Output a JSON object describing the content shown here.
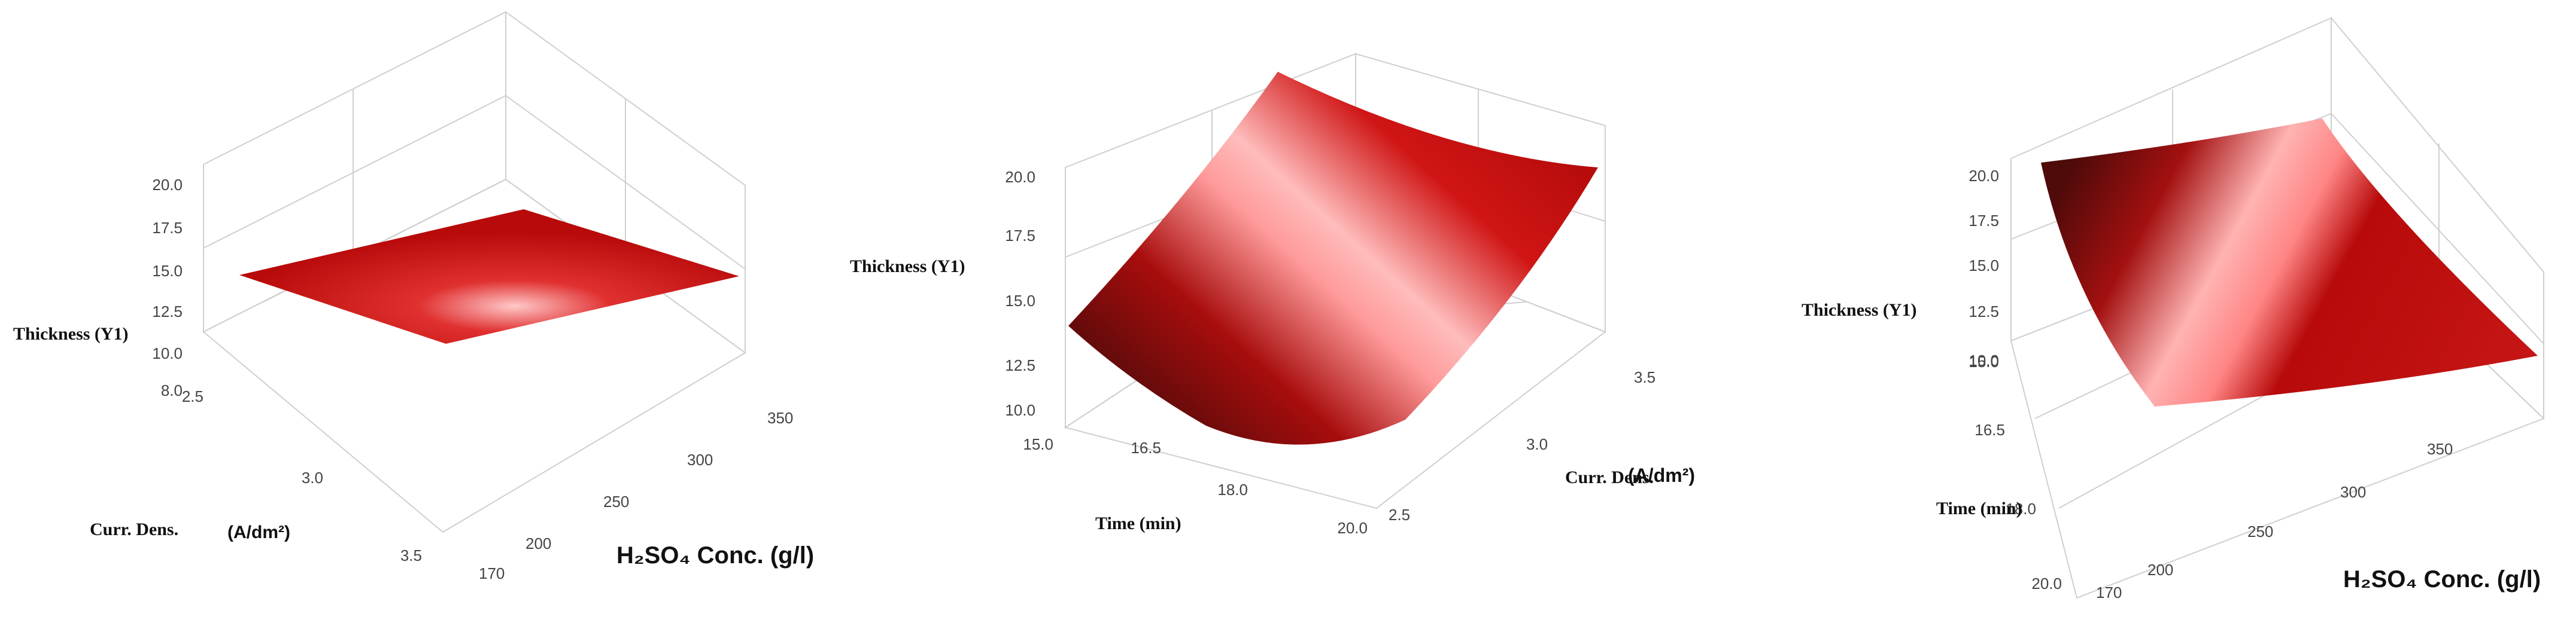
{
  "figure": {
    "panels": [
      {
        "z_label": "Thickness (Y1)",
        "y_label_main": "Curr. Dens.",
        "y_label_unit": "(A/dm²)",
        "x_label_main": "H₂SO₄ Conc. (g/l)"
      },
      {
        "z_label": "Thickness (Y1)",
        "x_label_main": "Time (min)",
        "y_label_main": "Curr. Dens.",
        "y_label_unit": "(A/dm²)"
      },
      {
        "z_label": "Thickness (Y1)",
        "y_label_main": "Time (min)",
        "x_label_main": "H₂SO₄ Conc. (g/l)"
      }
    ]
  },
  "chart_data": [
    {
      "type": "surface",
      "title": "",
      "xlabel": "H₂SO₄ Conc. (g/l)",
      "ylabel": "Curr. Dens. (A/dm²)",
      "zlabel": "Thickness (Y1)",
      "x_ticks": [
        "170",
        "200",
        "250",
        "300",
        "350"
      ],
      "y_ticks": [
        "2.5",
        "3.0",
        "3.5"
      ],
      "z_ticks": [
        "8.0",
        "10.0",
        "12.5",
        "15.0",
        "17.5",
        "20.0"
      ],
      "xlim": [
        170,
        350
      ],
      "ylim": [
        2.5,
        3.5
      ],
      "zlim": [
        8,
        20
      ],
      "x": [
        170,
        350
      ],
      "y": [
        2.5,
        3.5
      ],
      "z": [
        [
          13.5,
          13.8
        ],
        [
          13.8,
          12.8
        ]
      ],
      "colormap": [
        "#5a0d0d",
        "#c41414",
        "#ffc4c4"
      ]
    },
    {
      "type": "surface",
      "title": "",
      "xlabel": "Time (min)",
      "ylabel": "Curr. Dens. (A/dm²)",
      "zlabel": "Thickness (Y1)",
      "x_ticks": [
        "15.0",
        "16.5",
        "18.0",
        "20.0"
      ],
      "y_ticks": [
        "2.5",
        "3.0",
        "3.5"
      ],
      "z_ticks": [
        "10.0",
        "12.5",
        "15.0",
        "17.5",
        "20.0"
      ],
      "xlim": [
        15,
        20
      ],
      "ylim": [
        2.5,
        3.5
      ],
      "zlim": [
        10,
        20
      ],
      "x": [
        15,
        17.5,
        20
      ],
      "y": [
        2.5,
        3.0,
        3.5
      ],
      "z": [
        [
          13.2,
          10.5,
          12.0
        ],
        [
          16.4,
          13.5,
          14.2
        ],
        [
          22.5,
          18.0,
          17.5
        ]
      ],
      "colormap": [
        "#5a0d0d",
        "#c41414",
        "#ffc4c4"
      ]
    },
    {
      "type": "surface",
      "title": "",
      "xlabel": "H₂SO₄ Conc. (g/l)",
      "ylabel": "Time (min)",
      "zlabel": "Thickness (Y1)",
      "x_ticks": [
        "170",
        "200",
        "250",
        "300",
        "350"
      ],
      "y_ticks": [
        "15.0",
        "16.5",
        "18.0",
        "20.0"
      ],
      "z_ticks": [
        "10.0",
        "12.5",
        "15.0",
        "17.5",
        "20.0"
      ],
      "xlim": [
        170,
        350
      ],
      "ylim": [
        15,
        20
      ],
      "zlim": [
        10,
        20
      ],
      "x": [
        170,
        260,
        350
      ],
      "y": [
        15,
        17.5,
        20
      ],
      "z": [
        [
          19.5,
          17.0,
          14.0
        ],
        [
          16.5,
          13.0,
          11.5
        ],
        [
          20.8,
          15.5,
          13.5
        ]
      ],
      "colormap": [
        "#5a0d0d",
        "#c41414",
        "#ffc4c4"
      ]
    }
  ]
}
